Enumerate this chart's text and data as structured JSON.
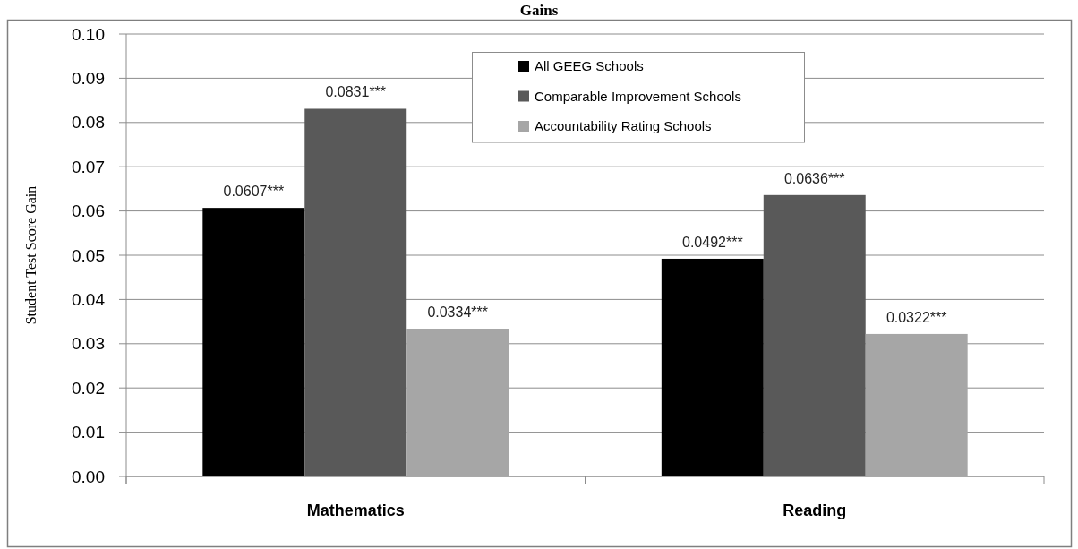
{
  "chart_data": {
    "type": "bar",
    "title": "Gains",
    "ylabel": "Student Test Score Gain",
    "categories": [
      "Mathematics",
      "Reading"
    ],
    "series": [
      {
        "name": "All GEEG Schools",
        "color": "#000000",
        "values": [
          0.0607,
          0.0492
        ],
        "value_labels": [
          "0.0607***",
          "0.0492***"
        ]
      },
      {
        "name": "Comparable Improvement Schools",
        "color": "#595959",
        "values": [
          0.0831,
          0.0636
        ],
        "value_labels": [
          "0.0831***",
          "0.0636***"
        ]
      },
      {
        "name": "Accountability Rating Schools",
        "color": "#a6a6a6",
        "values": [
          0.0334,
          0.0322
        ],
        "value_labels": [
          "0.0334***",
          "0.0322***"
        ]
      }
    ],
    "ylim": [
      0,
      0.1
    ],
    "yticks": [
      {
        "value": 0,
        "label": "0.00"
      },
      {
        "value": 0.01,
        "label": "0.01"
      },
      {
        "value": 0.02,
        "label": "0.02"
      },
      {
        "value": 0.03,
        "label": "0.03"
      },
      {
        "value": 0.04,
        "label": "0.04"
      },
      {
        "value": 0.05,
        "label": "0.05"
      },
      {
        "value": 0.06,
        "label": "0.06"
      },
      {
        "value": 0.07,
        "label": "0.07"
      },
      {
        "value": 0.08,
        "label": "0.08"
      },
      {
        "value": 0.09,
        "label": "0.09"
      },
      {
        "value": 0.1,
        "label": "0.10"
      }
    ],
    "grid": "y",
    "legend": "top"
  }
}
